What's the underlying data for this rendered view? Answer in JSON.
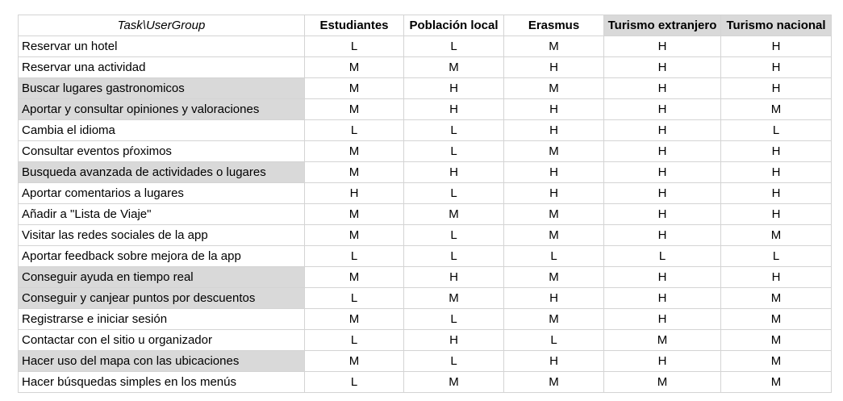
{
  "table": {
    "corner_header": "Task\\UserGroup",
    "columns": [
      {
        "label": "Estudiantes",
        "highlighted": false
      },
      {
        "label": "Población local",
        "highlighted": false
      },
      {
        "label": "Erasmus",
        "highlighted": false
      },
      {
        "label": "Turismo extranjero",
        "highlighted": true
      },
      {
        "label": "Turismo nacional",
        "highlighted": true
      }
    ],
    "highlight_color": "#d9d9d9",
    "rows": [
      {
        "task": "Reservar un hotel",
        "highlighted": false,
        "values": [
          "L",
          "L",
          "M",
          "H",
          "H"
        ]
      },
      {
        "task": "Reservar una actividad",
        "highlighted": false,
        "values": [
          "M",
          "M",
          "H",
          "H",
          "H"
        ]
      },
      {
        "task": "Buscar lugares gastronomicos",
        "highlighted": true,
        "values": [
          "M",
          "H",
          "M",
          "H",
          "H"
        ]
      },
      {
        "task": "Aportar y consultar opiniones y valoraciones",
        "highlighted": true,
        "values": [
          "M",
          "H",
          "H",
          "H",
          "M"
        ]
      },
      {
        "task": "Cambia el idioma",
        "highlighted": false,
        "values": [
          "L",
          "L",
          "H",
          "H",
          "L"
        ]
      },
      {
        "task": "Consultar eventos pŕoximos",
        "highlighted": false,
        "values": [
          "M",
          "L",
          "M",
          "H",
          "H"
        ]
      },
      {
        "task": "Busqueda avanzada de actividades o lugares",
        "highlighted": true,
        "values": [
          "M",
          "H",
          "H",
          "H",
          "H"
        ]
      },
      {
        "task": "Aportar comentarios a lugares",
        "highlighted": false,
        "values": [
          "H",
          "L",
          "H",
          "H",
          "H"
        ]
      },
      {
        "task": "Añadir a \"Lista de Viaje\"",
        "highlighted": false,
        "values": [
          "M",
          "M",
          "M",
          "H",
          "H"
        ]
      },
      {
        "task": "Visitar las redes sociales de la app",
        "highlighted": false,
        "values": [
          "M",
          "L",
          "M",
          "H",
          "M"
        ]
      },
      {
        "task": "Aportar feedback sobre mejora de la app",
        "highlighted": false,
        "values": [
          "L",
          "L",
          "L",
          "L",
          "L"
        ]
      },
      {
        "task": "Conseguir ayuda en tiempo real",
        "highlighted": true,
        "values": [
          "M",
          "H",
          "M",
          "H",
          "H"
        ]
      },
      {
        "task": "Conseguir y canjear puntos por descuentos",
        "highlighted": true,
        "values": [
          "L",
          "M",
          "H",
          "H",
          "M"
        ]
      },
      {
        "task": "Registrarse e iniciar sesión",
        "highlighted": false,
        "values": [
          "M",
          "L",
          "M",
          "H",
          "M"
        ]
      },
      {
        "task": "Contactar con el sitio u organizador",
        "highlighted": false,
        "values": [
          "L",
          "H",
          "L",
          "M",
          "M"
        ]
      },
      {
        "task": "Hacer uso del mapa con las ubicaciones",
        "highlighted": true,
        "values": [
          "M",
          "L",
          "H",
          "H",
          "M"
        ]
      },
      {
        "task": "Hacer búsquedas simples en los menús",
        "highlighted": false,
        "values": [
          "L",
          "M",
          "M",
          "M",
          "M"
        ]
      }
    ]
  }
}
